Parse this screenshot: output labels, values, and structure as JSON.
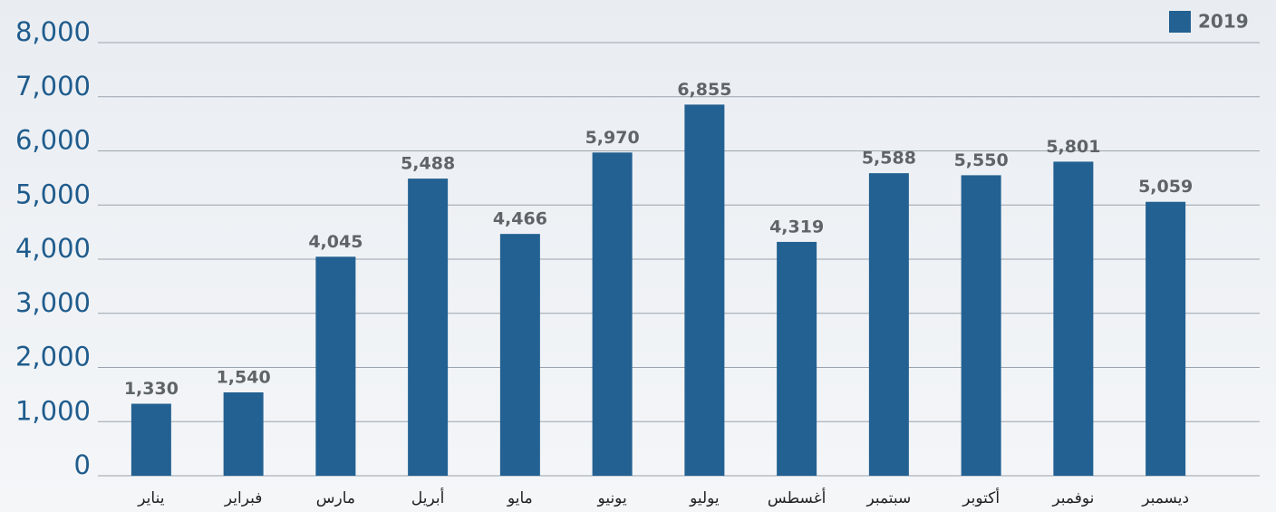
{
  "chart_data": {
    "type": "bar",
    "categories": [
      "يناير",
      "فبراير",
      "مارس",
      "أبريل",
      "مايو",
      "يونيو",
      "يوليو",
      "أغسطس",
      "سبتمبر",
      "أكتوبر",
      "نوفمبر",
      "ديسمبر"
    ],
    "series": [
      {
        "name": "2019",
        "color": "#236192",
        "values": [
          1330,
          1540,
          4045,
          5488,
          4466,
          5970,
          6855,
          4319,
          5588,
          5550,
          5801,
          5059
        ],
        "value_labels": [
          "1,330",
          "1,540",
          "4,045",
          "5,488",
          "4,466",
          "5,970",
          "6,855",
          "4,319",
          "5,588",
          "5,550",
          "5,801",
          "5,059"
        ]
      }
    ],
    "ylim": [
      0,
      8000
    ],
    "yticks": [
      0,
      {
        "value": 1000,
        "label": "1,000"
      },
      {
        "value": 2000,
        "label": "2,000"
      },
      {
        "value": 3000,
        "label": "3,000"
      },
      {
        "value": 4000,
        "label": "4,000"
      },
      {
        "value": 5000,
        "label": "5,000"
      },
      {
        "value": 6000,
        "label": "6,000"
      },
      {
        "value": 7000,
        "label": "7,000"
      },
      {
        "value": 8000,
        "label": "8,000"
      }
    ],
    "grid": true,
    "legend": "top-right"
  }
}
